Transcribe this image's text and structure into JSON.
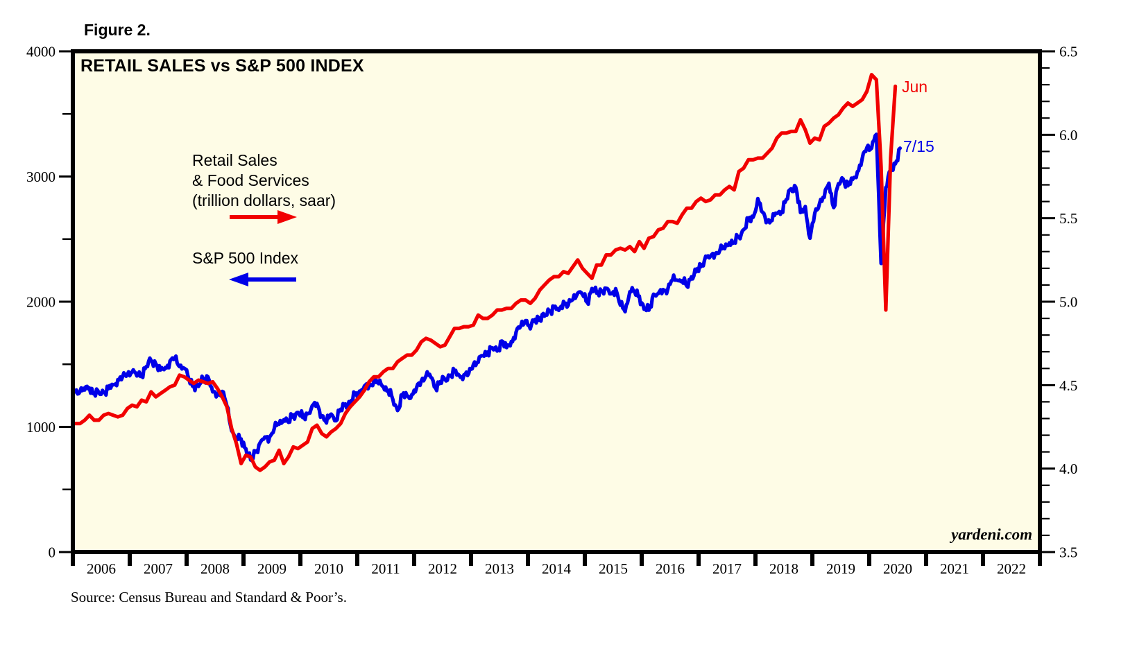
{
  "page": {
    "background": "#FFFFFF"
  },
  "header": {
    "figure_label": "Figure 2."
  },
  "chart": {
    "title": "RETAIL SALES vs S&P 500 INDEX",
    "watermark": "yardeni.com",
    "legend": {
      "retail": {
        "line1": "Retail Sales",
        "line2": "& Food Services",
        "line3": "(trillion dollars, saar)",
        "arrow_color": "#F10000",
        "arrow_direction": "right"
      },
      "sp500": {
        "label": "S&P 500 Index",
        "arrow_color": "#0000E8",
        "arrow_direction": "left"
      }
    },
    "annotations": {
      "retail_end_label": "Jun",
      "sp500_end_label": "7/15"
    }
  },
  "footer": {
    "source": "Source: Census Bureau and Standard & Poor’s."
  },
  "chart_data": {
    "type": "line",
    "title": "RETAIL SALES vs S&P 500 INDEX",
    "plot_background": "#FEFCE6",
    "border_color": "#000000",
    "grid": "off",
    "x_axis": {
      "min_year": 2006,
      "max_year": 2023,
      "year_labels": [
        "2006",
        "2007",
        "2008",
        "2009",
        "2010",
        "2011",
        "2012",
        "2013",
        "2014",
        "2015",
        "2016",
        "2017",
        "2018",
        "2019",
        "2020",
        "2021",
        "2022"
      ]
    },
    "left_axis": {
      "series": "S&P 500 Index",
      "min": 0,
      "max": 4000,
      "major_ticks": [
        0,
        1000,
        2000,
        3000,
        4000
      ],
      "minor_tick_step": 500
    },
    "right_axis": {
      "series": "Retail Sales & Food Services (trillion dollars, saar)",
      "min": 3.5,
      "max": 6.5,
      "major_ticks": [
        3.5,
        4.0,
        4.5,
        5.0,
        5.5,
        6.0,
        6.5
      ],
      "minor_tick_step": 0.1
    },
    "series": [
      {
        "name": "S&P 500 Index",
        "axis": "left",
        "color": "#0000E8",
        "frequency": "monthly",
        "texture": "weekly",
        "start_year": 2006,
        "end_label": "7/15",
        "values": [
          1280,
          1281,
          1295,
          1311,
          1270,
          1270,
          1277,
          1304,
          1336,
          1378,
          1401,
          1418,
          1438,
          1407,
          1421,
          1482,
          1531,
          1503,
          1455,
          1474,
          1527,
          1549,
          1481,
          1468,
          1379,
          1331,
          1323,
          1386,
          1400,
          1280,
          1267,
          1283,
          1166,
          969,
          896,
          903,
          826,
          735,
          798,
          873,
          919,
          919,
          987,
          1021,
          1057,
          1036,
          1096,
          1115,
          1074,
          1104,
          1169,
          1187,
          1089,
          1031,
          1102,
          1049,
          1141,
          1183,
          1181,
          1258,
          1286,
          1327,
          1326,
          1364,
          1345,
          1321,
          1292,
          1219,
          1131,
          1253,
          1247,
          1258,
          1312,
          1366,
          1408,
          1398,
          1310,
          1362,
          1379,
          1407,
          1441,
          1412,
          1416,
          1426,
          1498,
          1515,
          1569,
          1598,
          1631,
          1606,
          1686,
          1633,
          1682,
          1757,
          1806,
          1848,
          1783,
          1859,
          1872,
          1884,
          1924,
          1960,
          1931,
          2003,
          1972,
          2018,
          2068,
          2059,
          1995,
          2105,
          2068,
          2086,
          2107,
          2063,
          2104,
          1972,
          1920,
          2079,
          2080,
          2044,
          1940,
          1932,
          2060,
          2065,
          2097,
          2099,
          2174,
          2171,
          2168,
          2126,
          2199,
          2239,
          2279,
          2364,
          2363,
          2384,
          2412,
          2423,
          2470,
          2472,
          2519,
          2575,
          2648,
          2674,
          2824,
          2714,
          2641,
          2648,
          2705,
          2718,
          2816,
          2902,
          2914,
          2712,
          2760,
          2507,
          2704,
          2784,
          2834,
          2946,
          2752,
          2942,
          2980,
          2926,
          2977,
          3038,
          3141,
          3231,
          3226,
          3337,
          2305,
          2912,
          3044,
          3100,
          3226
        ]
      },
      {
        "name": "Retail Sales & Food Services (trillion dollars, saar)",
        "axis": "right",
        "color": "#F10000",
        "frequency": "monthly",
        "texture": "none",
        "start_year": 2006,
        "end_label": "Jun",
        "values": [
          4.27,
          4.27,
          4.29,
          4.32,
          4.29,
          4.29,
          4.32,
          4.33,
          4.32,
          4.31,
          4.32,
          4.36,
          4.38,
          4.37,
          4.41,
          4.4,
          4.46,
          4.43,
          4.45,
          4.47,
          4.49,
          4.5,
          4.56,
          4.55,
          4.53,
          4.51,
          4.53,
          4.52,
          4.51,
          4.52,
          4.48,
          4.43,
          4.37,
          4.24,
          4.15,
          4.03,
          4.08,
          4.07,
          4.01,
          3.99,
          4.01,
          4.04,
          4.05,
          4.11,
          4.03,
          4.07,
          4.13,
          4.12,
          4.14,
          4.16,
          4.24,
          4.26,
          4.21,
          4.19,
          4.22,
          4.24,
          4.27,
          4.33,
          4.37,
          4.4,
          4.43,
          4.47,
          4.52,
          4.55,
          4.55,
          4.58,
          4.6,
          4.6,
          4.64,
          4.66,
          4.68,
          4.68,
          4.71,
          4.76,
          4.78,
          4.77,
          4.75,
          4.73,
          4.74,
          4.79,
          4.84,
          4.84,
          4.85,
          4.85,
          4.86,
          4.92,
          4.9,
          4.9,
          4.92,
          4.95,
          4.95,
          4.96,
          4.96,
          4.99,
          5.01,
          5.01,
          4.99,
          5.02,
          5.07,
          5.1,
          5.13,
          5.15,
          5.15,
          5.18,
          5.17,
          5.21,
          5.25,
          5.2,
          5.17,
          5.14,
          5.22,
          5.22,
          5.28,
          5.28,
          5.31,
          5.32,
          5.31,
          5.33,
          5.3,
          5.36,
          5.32,
          5.38,
          5.39,
          5.43,
          5.44,
          5.48,
          5.48,
          5.47,
          5.52,
          5.56,
          5.56,
          5.6,
          5.62,
          5.6,
          5.61,
          5.64,
          5.64,
          5.67,
          5.69,
          5.67,
          5.78,
          5.8,
          5.85,
          5.85,
          5.86,
          5.86,
          5.89,
          5.92,
          5.98,
          6.01,
          6.01,
          6.02,
          6.02,
          6.09,
          6.03,
          5.95,
          5.98,
          5.97,
          6.05,
          6.07,
          6.1,
          6.12,
          6.16,
          6.19,
          6.17,
          6.19,
          6.21,
          6.26,
          6.36,
          6.33,
          5.81,
          4.95,
          5.86,
          6.29
        ]
      }
    ]
  }
}
